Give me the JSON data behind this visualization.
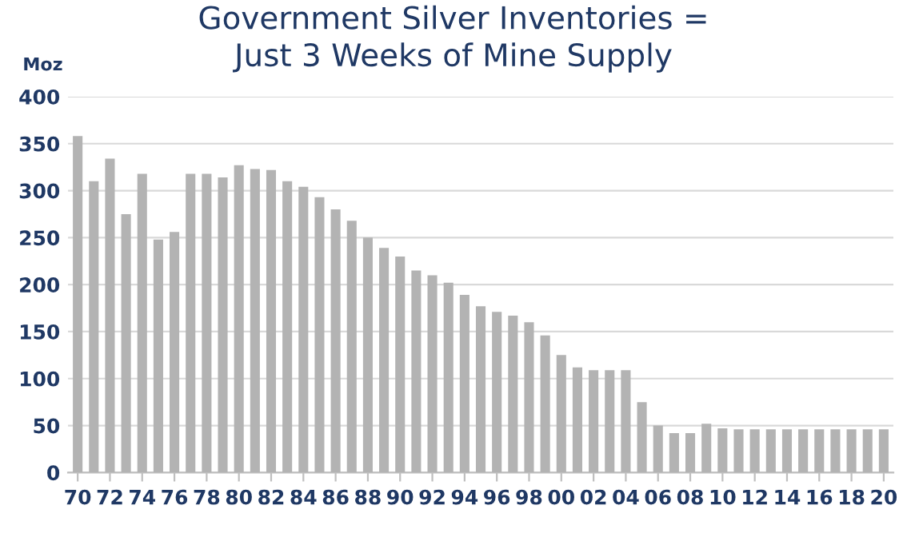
{
  "chart_data": {
    "type": "bar",
    "title": "Government Silver Inventories =\nJust 3 Weeks of Mine Supply",
    "ylabel": "Moz",
    "categories": [
      "70",
      null,
      "72",
      null,
      "74",
      null,
      "76",
      null,
      "78",
      null,
      "80",
      null,
      "82",
      null,
      "84",
      null,
      "86",
      null,
      "88",
      null,
      "90",
      null,
      "92",
      null,
      "94",
      null,
      "96",
      null,
      "98",
      null,
      "00",
      null,
      "02",
      null,
      "04",
      null,
      "06",
      null,
      "08",
      null,
      "10",
      null,
      "12",
      null,
      "14",
      null,
      "16",
      null,
      "18",
      null,
      "20"
    ],
    "values": [
      358,
      310,
      334,
      275,
      318,
      248,
      256,
      318,
      318,
      314,
      327,
      323,
      322,
      310,
      304,
      293,
      280,
      268,
      250,
      239,
      230,
      215,
      210,
      202,
      189,
      177,
      171,
      167,
      160,
      146,
      125,
      112,
      109,
      109,
      109,
      75,
      50,
      42,
      42,
      52,
      47,
      46,
      46,
      46,
      46,
      46,
      46,
      46,
      46,
      46,
      46
    ],
    "color": "#b3b3b3",
    "ylim": [
      0,
      400
    ],
    "yticks": [
      0,
      50,
      100,
      150,
      200,
      250,
      300,
      350,
      400
    ],
    "grid": "y"
  }
}
